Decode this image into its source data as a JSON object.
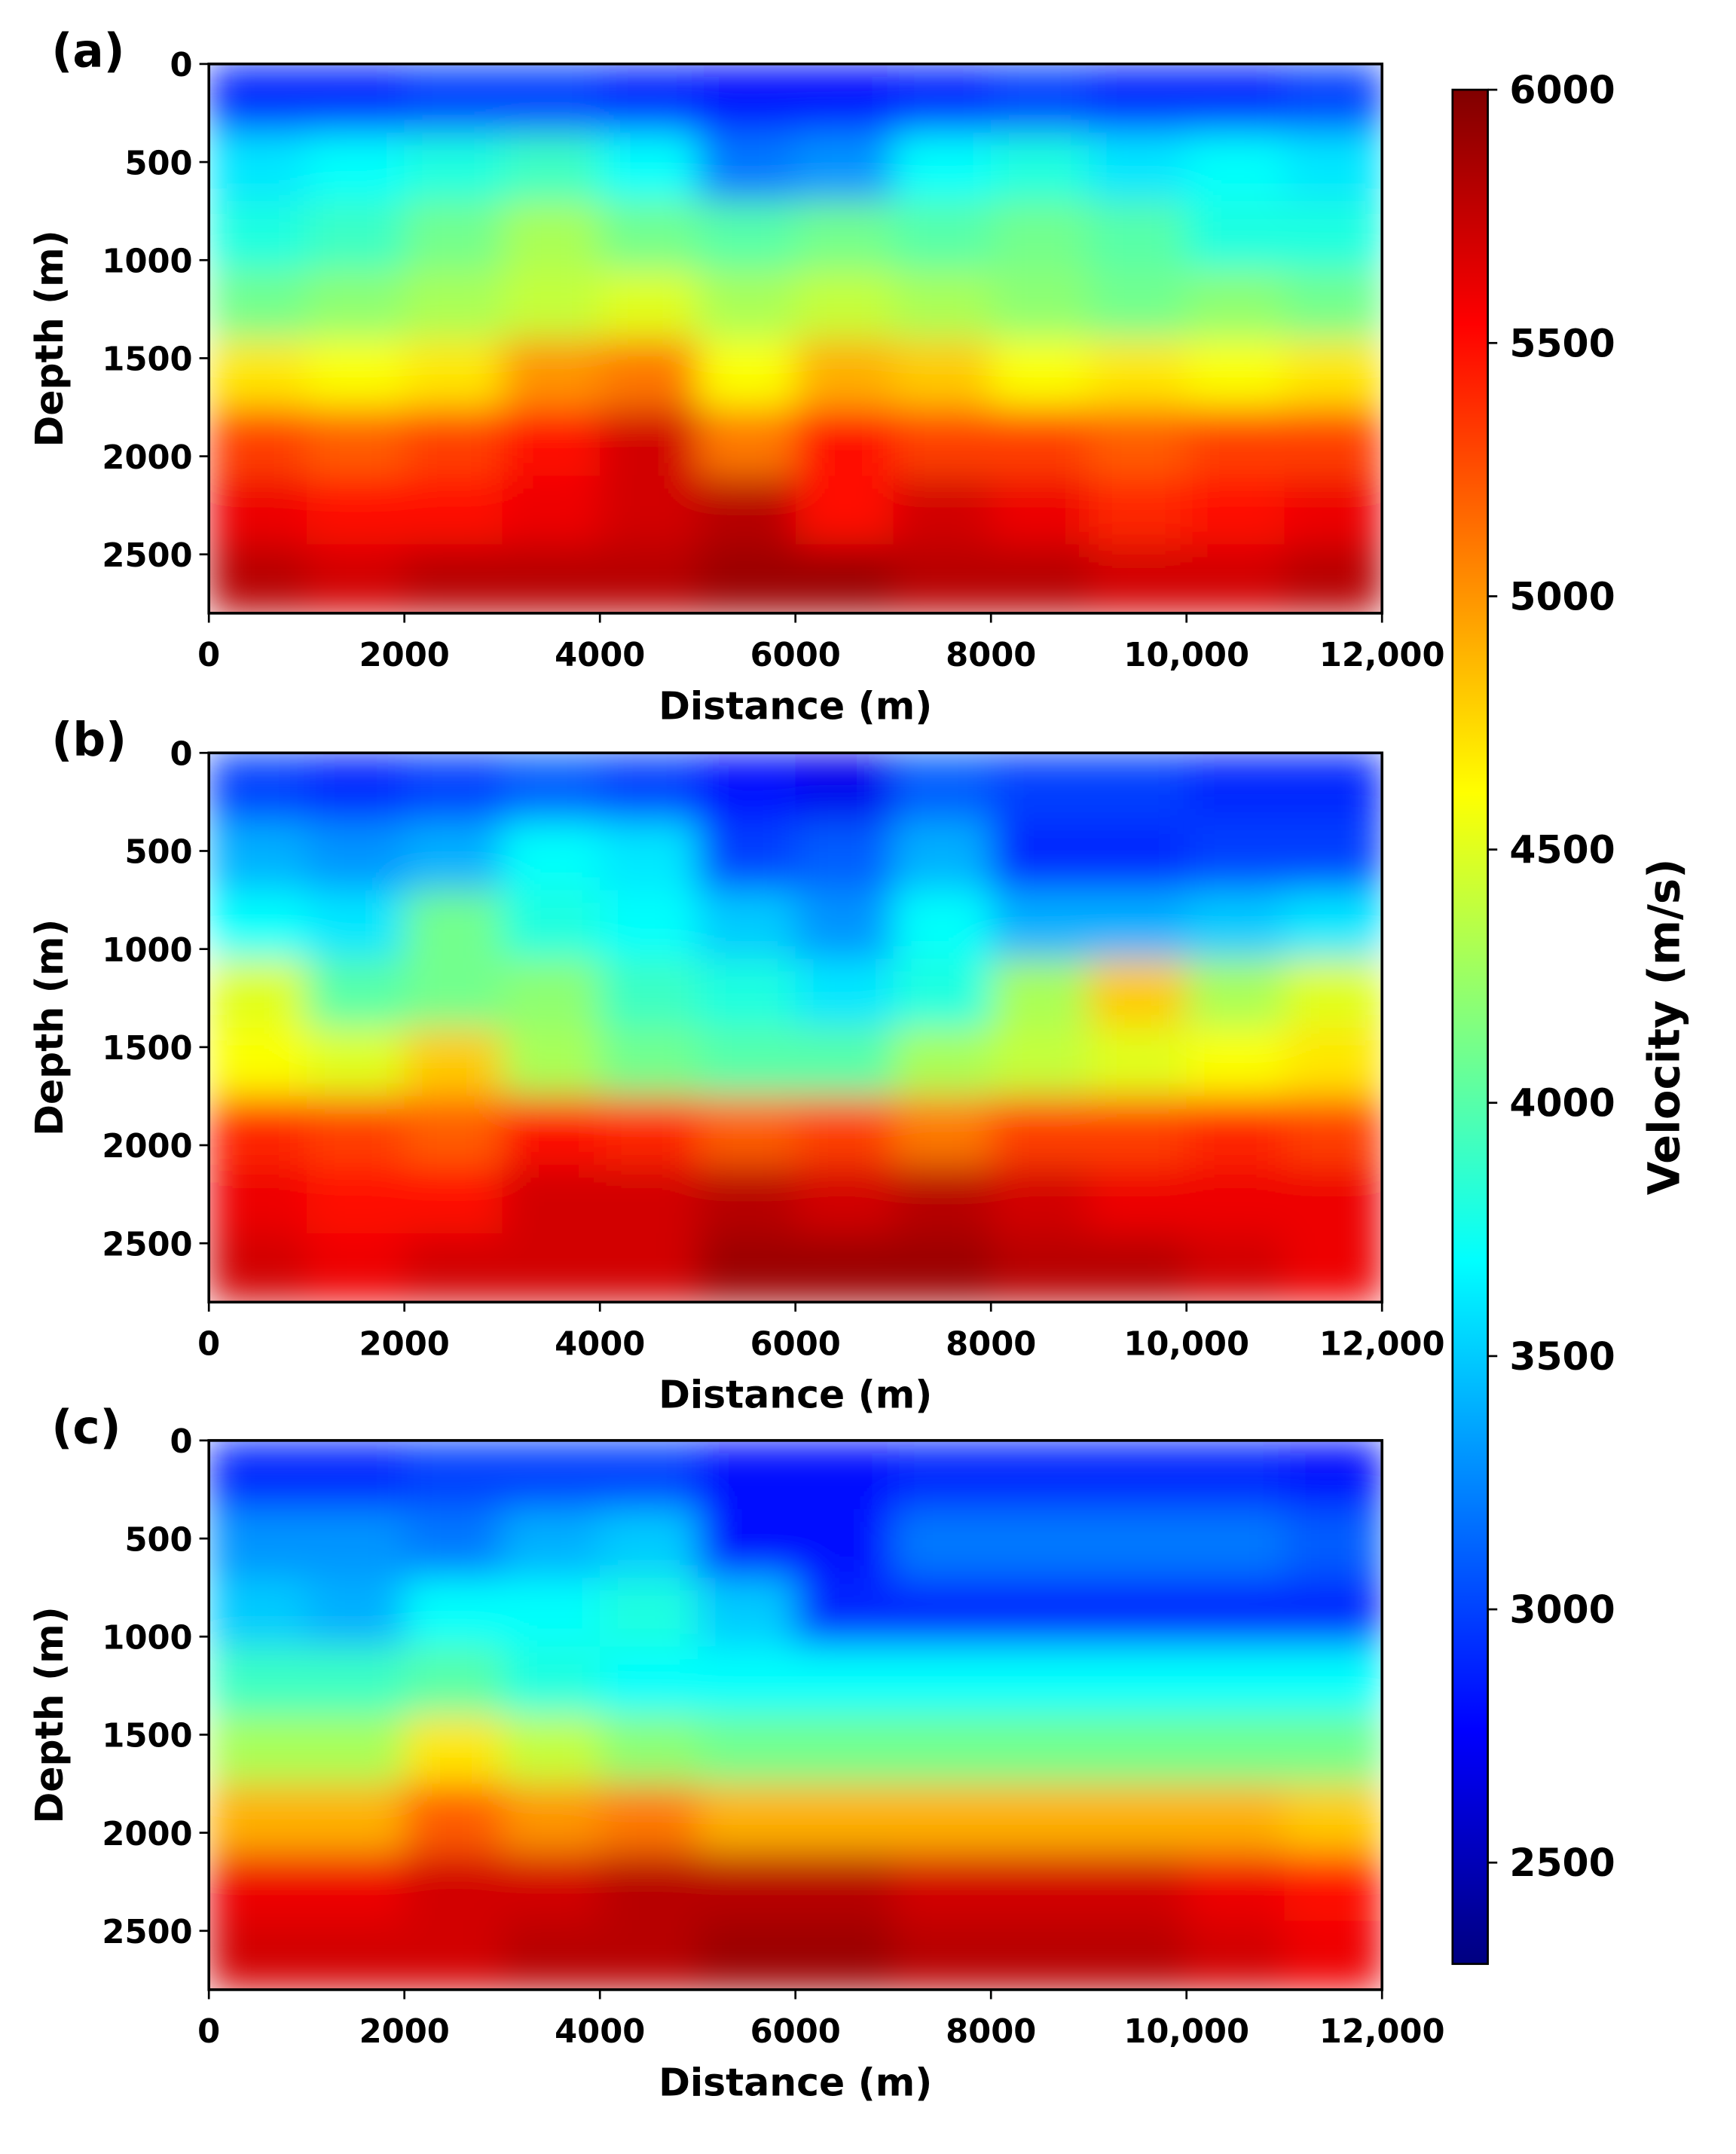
{
  "chart_data": [
    {
      "type": "heatmap",
      "panel_label": "(a)",
      "xlabel": "Distance (m)",
      "ylabel": "Depth (m)",
      "xlim": [
        0,
        12000
      ],
      "ylim": [
        0,
        2800
      ],
      "xticks": [
        0,
        2000,
        4000,
        6000,
        8000,
        {
          "value": 10000,
          "label": "10,000"
        },
        {
          "value": 12000,
          "label": "12,000"
        }
      ],
      "yticks": [
        0,
        500,
        1000,
        1500,
        2000,
        2500
      ],
      "z": [
        [
          2900,
          2900,
          3000,
          3000,
          2900,
          2800,
          2800,
          2900,
          3000,
          2900,
          2900,
          3000
        ],
        [
          3600,
          3700,
          3800,
          3900,
          3700,
          3200,
          3300,
          3700,
          3800,
          3600,
          3700,
          3600
        ],
        [
          3800,
          3900,
          4100,
          4300,
          4100,
          4000,
          4100,
          4000,
          4100,
          4000,
          3800,
          3800
        ],
        [
          4100,
          4200,
          4300,
          4400,
          4500,
          4300,
          4400,
          4300,
          4200,
          4100,
          4200,
          4100
        ],
        [
          4700,
          4600,
          4700,
          5000,
          5100,
          4600,
          4900,
          4800,
          4600,
          4700,
          4600,
          4700
        ],
        [
          5300,
          5200,
          5300,
          5500,
          5700,
          5100,
          5500,
          5300,
          5300,
          5200,
          5300,
          5300
        ],
        [
          5600,
          5500,
          5500,
          5600,
          5700,
          5800,
          5500,
          5700,
          5600,
          5400,
          5500,
          5600
        ],
        [
          5800,
          5700,
          5800,
          5800,
          5800,
          5900,
          5900,
          5800,
          5800,
          5700,
          5700,
          5800
        ]
      ]
    },
    {
      "type": "heatmap",
      "panel_label": "(b)",
      "xlabel": "Distance (m)",
      "ylabel": "Depth (m)",
      "xlim": [
        0,
        12000
      ],
      "ylim": [
        0,
        2800
      ],
      "xticks": [
        0,
        2000,
        4000,
        6000,
        8000,
        {
          "value": 10000,
          "label": "10,000"
        },
        {
          "value": 12000,
          "label": "12,000"
        }
      ],
      "yticks": [
        0,
        500,
        1000,
        1500,
        2000,
        2500
      ],
      "z": [
        [
          3000,
          2900,
          3000,
          3100,
          3000,
          2800,
          2700,
          3100,
          3000,
          3000,
          2900,
          2900
        ],
        [
          3400,
          3300,
          3400,
          3700,
          3600,
          3000,
          3100,
          3400,
          2900,
          2900,
          3000,
          3000
        ],
        [
          3700,
          3600,
          4100,
          3800,
          3700,
          3500,
          3300,
          3700,
          3400,
          3400,
          3500,
          3600
        ],
        [
          4500,
          4000,
          4100,
          4200,
          3900,
          3800,
          3600,
          3800,
          4300,
          4800,
          4300,
          4500
        ],
        [
          4600,
          4500,
          4800,
          4300,
          4100,
          4000,
          4000,
          4300,
          4400,
          4500,
          4600,
          4700
        ],
        [
          5400,
          5300,
          5200,
          5500,
          5400,
          5200,
          5300,
          5100,
          5300,
          5300,
          5400,
          5300
        ],
        [
          5600,
          5500,
          5500,
          5700,
          5700,
          5800,
          5700,
          5800,
          5700,
          5600,
          5600,
          5600
        ],
        [
          5700,
          5600,
          5700,
          5700,
          5700,
          5900,
          5900,
          5900,
          5800,
          5800,
          5700,
          5600
        ]
      ]
    },
    {
      "type": "heatmap",
      "panel_label": "(c)",
      "xlabel": "Distance (m)",
      "ylabel": "Depth (m)",
      "xlim": [
        0,
        12000
      ],
      "ylim": [
        0,
        2800
      ],
      "xticks": [
        0,
        2000,
        4000,
        6000,
        8000,
        {
          "value": 10000,
          "label": "10,000"
        },
        {
          "value": 12000,
          "label": "12,000"
        }
      ],
      "yticks": [
        0,
        500,
        1000,
        1500,
        2000,
        2500
      ],
      "z": [
        [
          2900,
          2900,
          3000,
          3000,
          3000,
          2800,
          2800,
          2900,
          2900,
          2900,
          2900,
          2800
        ],
        [
          3300,
          3300,
          3200,
          3400,
          3500,
          2800,
          2800,
          3200,
          3200,
          3200,
          3200,
          3100
        ],
        [
          3500,
          3400,
          3700,
          3700,
          3800,
          3500,
          2900,
          2900,
          2900,
          2900,
          2900,
          2900
        ],
        [
          3900,
          3900,
          4000,
          3800,
          3700,
          3700,
          3700,
          3700,
          3700,
          3700,
          3700,
          3700
        ],
        [
          4300,
          4300,
          4700,
          4400,
          4200,
          4100,
          4100,
          4100,
          4100,
          4100,
          4100,
          4100
        ],
        [
          4900,
          4900,
          5200,
          5000,
          5100,
          4900,
          4900,
          4900,
          4900,
          4900,
          4900,
          4800
        ],
        [
          5600,
          5600,
          5700,
          5700,
          5800,
          5800,
          5800,
          5700,
          5700,
          5700,
          5600,
          5500
        ],
        [
          5700,
          5700,
          5700,
          5800,
          5800,
          5900,
          5900,
          5800,
          5800,
          5800,
          5700,
          5600
        ]
      ]
    }
  ],
  "colorbar": {
    "label": "Velocity (m/s)",
    "colormap": "jet",
    "vlim": [
      2300,
      6000
    ],
    "ticks": [
      2500,
      3000,
      3500,
      4000,
      4500,
      5000,
      5500,
      6000
    ]
  }
}
